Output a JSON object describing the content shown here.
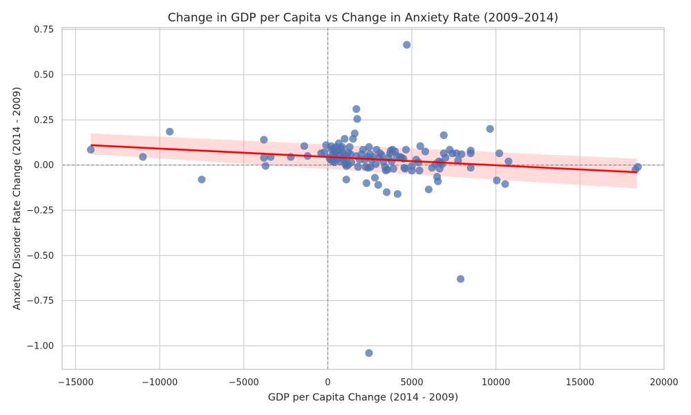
{
  "chart_data": {
    "type": "scatter",
    "title": "Change in GDP per Capita vs Change in Anxiety Rate (2009–2014)",
    "xlabel": "GDP per Capita Change (2014 - 2009)",
    "ylabel": "Anxiety Disorder Rate Change (2014 - 2009)",
    "xlim": [
      -15800,
      20000
    ],
    "ylim": [
      -1.13,
      0.76
    ],
    "x_ticks": [
      -15000,
      -10000,
      -5000,
      0,
      5000,
      10000,
      15000,
      20000
    ],
    "x_tick_labels": [
      "−15000",
      "−10000",
      "−5000",
      "0",
      "5000",
      "10000",
      "15000",
      "20000"
    ],
    "y_ticks": [
      0.75,
      0.5,
      0.25,
      0.0,
      -0.25,
      -0.5,
      -0.75,
      -1.0
    ],
    "y_tick_labels": [
      "0.75",
      "0.50",
      "0.25",
      "0.00",
      "−0.25",
      "−0.50",
      "−0.75",
      "−1.00"
    ],
    "grid": true,
    "reference_lines": {
      "x": 0,
      "y": 0
    },
    "colors": {
      "points": "#4c72b0",
      "regression": "#ff0000",
      "ci_band": "#ff9999",
      "ref_lines": "#808080",
      "grid": "#cccccc"
    },
    "regression": {
      "x": [
        -14100,
        18400
      ],
      "y": [
        0.11,
        -0.04
      ],
      "ci_lower": [
        0.06,
        -0.13
      ],
      "ci_upper": [
        0.175,
        0.035
      ]
    },
    "points": [
      {
        "x": -14100,
        "y": 0.085
      },
      {
        "x": -11000,
        "y": 0.045
      },
      {
        "x": -9400,
        "y": 0.185
      },
      {
        "x": -7500,
        "y": -0.08
      },
      {
        "x": -3800,
        "y": 0.14
      },
      {
        "x": -3800,
        "y": 0.04
      },
      {
        "x": -3700,
        "y": -0.005
      },
      {
        "x": -3400,
        "y": 0.045
      },
      {
        "x": -2200,
        "y": 0.045
      },
      {
        "x": -1400,
        "y": 0.105
      },
      {
        "x": -1200,
        "y": 0.05
      },
      {
        "x": -400,
        "y": 0.065
      },
      {
        "x": -200,
        "y": 0.07
      },
      {
        "x": -100,
        "y": 0.11
      },
      {
        "x": 100,
        "y": 0.04
      },
      {
        "x": 150,
        "y": 0.03
      },
      {
        "x": 200,
        "y": 0.105
      },
      {
        "x": 250,
        "y": 0.085
      },
      {
        "x": 300,
        "y": 0.02
      },
      {
        "x": 300,
        "y": 0.06
      },
      {
        "x": 350,
        "y": 0.09
      },
      {
        "x": 400,
        "y": 0.045
      },
      {
        "x": 400,
        "y": 0.015
      },
      {
        "x": 450,
        "y": 0.07
      },
      {
        "x": 500,
        "y": 0.1
      },
      {
        "x": 550,
        "y": 0.035
      },
      {
        "x": 600,
        "y": 0.08
      },
      {
        "x": 650,
        "y": 0.12
      },
      {
        "x": 700,
        "y": 0.055
      },
      {
        "x": 750,
        "y": 0.02
      },
      {
        "x": 800,
        "y": 0.09
      },
      {
        "x": 850,
        "y": 0.1
      },
      {
        "x": 900,
        "y": 0.065
      },
      {
        "x": 950,
        "y": 0.03
      },
      {
        "x": 1000,
        "y": 0.145
      },
      {
        "x": 1000,
        "y": 0.05
      },
      {
        "x": 1050,
        "y": 0.005
      },
      {
        "x": 1100,
        "y": -0.005
      },
      {
        "x": 1100,
        "y": -0.08
      },
      {
        "x": 1150,
        "y": 0.04
      },
      {
        "x": 1200,
        "y": 0.07
      },
      {
        "x": 1200,
        "y": 0.0
      },
      {
        "x": 1300,
        "y": 0.1
      },
      {
        "x": 1350,
        "y": 0.06
      },
      {
        "x": 1400,
        "y": 0.015
      },
      {
        "x": 1500,
        "y": 0.145
      },
      {
        "x": 1600,
        "y": 0.175
      },
      {
        "x": 1700,
        "y": 0.31
      },
      {
        "x": 1750,
        "y": 0.255
      },
      {
        "x": 1700,
        "y": 0.05
      },
      {
        "x": 1800,
        "y": -0.01
      },
      {
        "x": 1900,
        "y": 0.03
      },
      {
        "x": 2000,
        "y": 0.06
      },
      {
        "x": 2100,
        "y": 0.085
      },
      {
        "x": 2200,
        "y": 0.03
      },
      {
        "x": 2250,
        "y": -0.01
      },
      {
        "x": 2300,
        "y": -0.1
      },
      {
        "x": 2350,
        "y": 0.045
      },
      {
        "x": 2400,
        "y": -0.015
      },
      {
        "x": 2450,
        "y": 0.1
      },
      {
        "x": 2500,
        "y": 0.06
      },
      {
        "x": 2550,
        "y": -0.01
      },
      {
        "x": 2600,
        "y": 0.03
      },
      {
        "x": 2700,
        "y": 0.045
      },
      {
        "x": 2800,
        "y": -0.07
      },
      {
        "x": 2850,
        "y": 0.005
      },
      {
        "x": 2900,
        "y": 0.085
      },
      {
        "x": 3000,
        "y": -0.11
      },
      {
        "x": 3050,
        "y": 0.04
      },
      {
        "x": 3100,
        "y": 0.065
      },
      {
        "x": 3200,
        "y": 0.055
      },
      {
        "x": 3300,
        "y": 0.02
      },
      {
        "x": 3400,
        "y": -0.01
      },
      {
        "x": 3450,
        "y": -0.03
      },
      {
        "x": 3500,
        "y": -0.15
      },
      {
        "x": 3550,
        "y": -0.025
      },
      {
        "x": 3600,
        "y": 0.04
      },
      {
        "x": 3700,
        "y": 0.065
      },
      {
        "x": 3750,
        "y": 0.08
      },
      {
        "x": 3800,
        "y": 0.02
      },
      {
        "x": 3850,
        "y": 0.085
      },
      {
        "x": 3900,
        "y": -0.02
      },
      {
        "x": 4000,
        "y": 0.075
      },
      {
        "x": 4100,
        "y": 0.05
      },
      {
        "x": 4150,
        "y": -0.16
      },
      {
        "x": 4300,
        "y": 0.045
      },
      {
        "x": 4400,
        "y": 0.04
      },
      {
        "x": 4500,
        "y": 0.035
      },
      {
        "x": 4550,
        "y": -0.015
      },
      {
        "x": 4600,
        "y": -0.02
      },
      {
        "x": 4650,
        "y": 0.085
      },
      {
        "x": 4700,
        "y": 0.665
      },
      {
        "x": 5000,
        "y": -0.03
      },
      {
        "x": 5000,
        "y": -0.005
      },
      {
        "x": 5250,
        "y": 0.03
      },
      {
        "x": 5400,
        "y": 0.015
      },
      {
        "x": 5450,
        "y": -0.03
      },
      {
        "x": 5500,
        "y": 0.105
      },
      {
        "x": 5800,
        "y": 0.075
      },
      {
        "x": 6000,
        "y": -0.135
      },
      {
        "x": 6200,
        "y": -0.015
      },
      {
        "x": 6400,
        "y": 0.005
      },
      {
        "x": 6500,
        "y": -0.065
      },
      {
        "x": 6550,
        "y": -0.09
      },
      {
        "x": 6600,
        "y": 0.02
      },
      {
        "x": 6650,
        "y": -0.02
      },
      {
        "x": 6700,
        "y": 0.015
      },
      {
        "x": 6800,
        "y": 0.005
      },
      {
        "x": 6900,
        "y": 0.165
      },
      {
        "x": 6900,
        "y": 0.065
      },
      {
        "x": 7000,
        "y": 0.04
      },
      {
        "x": 7250,
        "y": 0.085
      },
      {
        "x": 7400,
        "y": 0.065
      },
      {
        "x": 7650,
        "y": 0.065
      },
      {
        "x": 7750,
        "y": 0.025
      },
      {
        "x": 7900,
        "y": -0.63
      },
      {
        "x": 7950,
        "y": 0.06
      },
      {
        "x": 8500,
        "y": 0.08
      },
      {
        "x": 8500,
        "y": 0.065
      },
      {
        "x": 8500,
        "y": -0.015
      },
      {
        "x": 9650,
        "y": 0.2
      },
      {
        "x": 10050,
        "y": -0.085
      },
      {
        "x": 10200,
        "y": 0.065
      },
      {
        "x": 10550,
        "y": -0.105
      },
      {
        "x": 10750,
        "y": 0.02
      },
      {
        "x": 18300,
        "y": -0.025
      },
      {
        "x": 18450,
        "y": -0.01
      },
      {
        "x": 2450,
        "y": -1.04
      }
    ]
  }
}
